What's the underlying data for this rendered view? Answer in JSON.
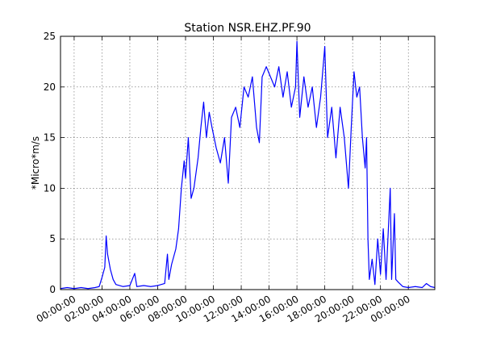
{
  "chart_data": {
    "type": "line",
    "title": "Station NSR.EHZ.PF.90",
    "y_label": "*Micro*m/s",
    "xlim": [
      -0.98,
      25.9
    ],
    "ylim": [
      0,
      25
    ],
    "xticks": [
      {
        "value": 0,
        "label": "00:00:00"
      },
      {
        "value": 2,
        "label": "02:00:00"
      },
      {
        "value": 4,
        "label": "04:00:00"
      },
      {
        "value": 6,
        "label": "06:00:00"
      },
      {
        "value": 8,
        "label": "08:00:00"
      },
      {
        "value": 10,
        "label": "10:00:00"
      },
      {
        "value": 12,
        "label": "12:00:00"
      },
      {
        "value": 14,
        "label": "14:00:00"
      },
      {
        "value": 16,
        "label": "16:00:00"
      },
      {
        "value": 18,
        "label": "18:00:00"
      },
      {
        "value": 20,
        "label": "20:00:00"
      },
      {
        "value": 22,
        "label": "22:00:00"
      },
      {
        "value": 24,
        "label": "00:00:00"
      }
    ],
    "yticks": [
      0,
      5,
      10,
      15,
      20,
      25
    ],
    "grid": true,
    "x": [
      -0.98,
      -0.5,
      0,
      0.5,
      1,
      1.5,
      1.8,
      2.0,
      2.2,
      2.3,
      2.4,
      2.6,
      2.8,
      3,
      3.5,
      4,
      4.35,
      4.5,
      5,
      5.5,
      6,
      6.5,
      6.7,
      6.8,
      7,
      7.3,
      7.5,
      7.7,
      7.9,
      8,
      8.2,
      8.4,
      8.6,
      8.9,
      9.1,
      9.3,
      9.5,
      9.7,
      9.9,
      10.2,
      10.5,
      10.8,
      11.07,
      11.3,
      11.6,
      11.9,
      12.2,
      12.5,
      12.8,
      13.1,
      13.3,
      13.5,
      13.8,
      14.1,
      14.4,
      14.7,
      15,
      15.3,
      15.6,
      15.9,
      16,
      16.2,
      16.5,
      16.8,
      17.1,
      17.4,
      17.7,
      18,
      18.2,
      18.5,
      18.8,
      19.1,
      19.4,
      19.7,
      19.9,
      20.1,
      20.3,
      20.5,
      20.7,
      20.9,
      21.0,
      21.1,
      21.2,
      21.4,
      21.6,
      21.8,
      22,
      22.2,
      22.4,
      22.7,
      22.8,
      23,
      23.1,
      23.3,
      23.6,
      24,
      24.5,
      25,
      25.3,
      25.6,
      25.9
    ],
    "series": [
      {
        "name": "NSR.EHZ.PF.90",
        "color": "#0000ff",
        "values": [
          0.1,
          0.2,
          0.1,
          0.2,
          0.1,
          0.2,
          0.3,
          1.2,
          2.2,
          5.3,
          3.5,
          2,
          1,
          0.5,
          0.3,
          0.4,
          1.6,
          0.3,
          0.4,
          0.3,
          0.4,
          0.6,
          3.5,
          1,
          2.5,
          4,
          6,
          10,
          12.7,
          11,
          15,
          9,
          10,
          13,
          16,
          18.5,
          15,
          17.5,
          16,
          14,
          12.5,
          15,
          10.5,
          17,
          18,
          16,
          20,
          19,
          21,
          16,
          14.5,
          21,
          22,
          21,
          20,
          22,
          19,
          21.5,
          18,
          20,
          24.5,
          17,
          21,
          18,
          20,
          16,
          19,
          24,
          15,
          18,
          13,
          18,
          15,
          10,
          16,
          21.5,
          19,
          20,
          15,
          12,
          15,
          5,
          1,
          3,
          0.5,
          5,
          1.5,
          6,
          1,
          10,
          1,
          7.5,
          1,
          0.7,
          0.3,
          0.2,
          0.3,
          0.2,
          0.6,
          0.3,
          0.2
        ]
      }
    ]
  }
}
